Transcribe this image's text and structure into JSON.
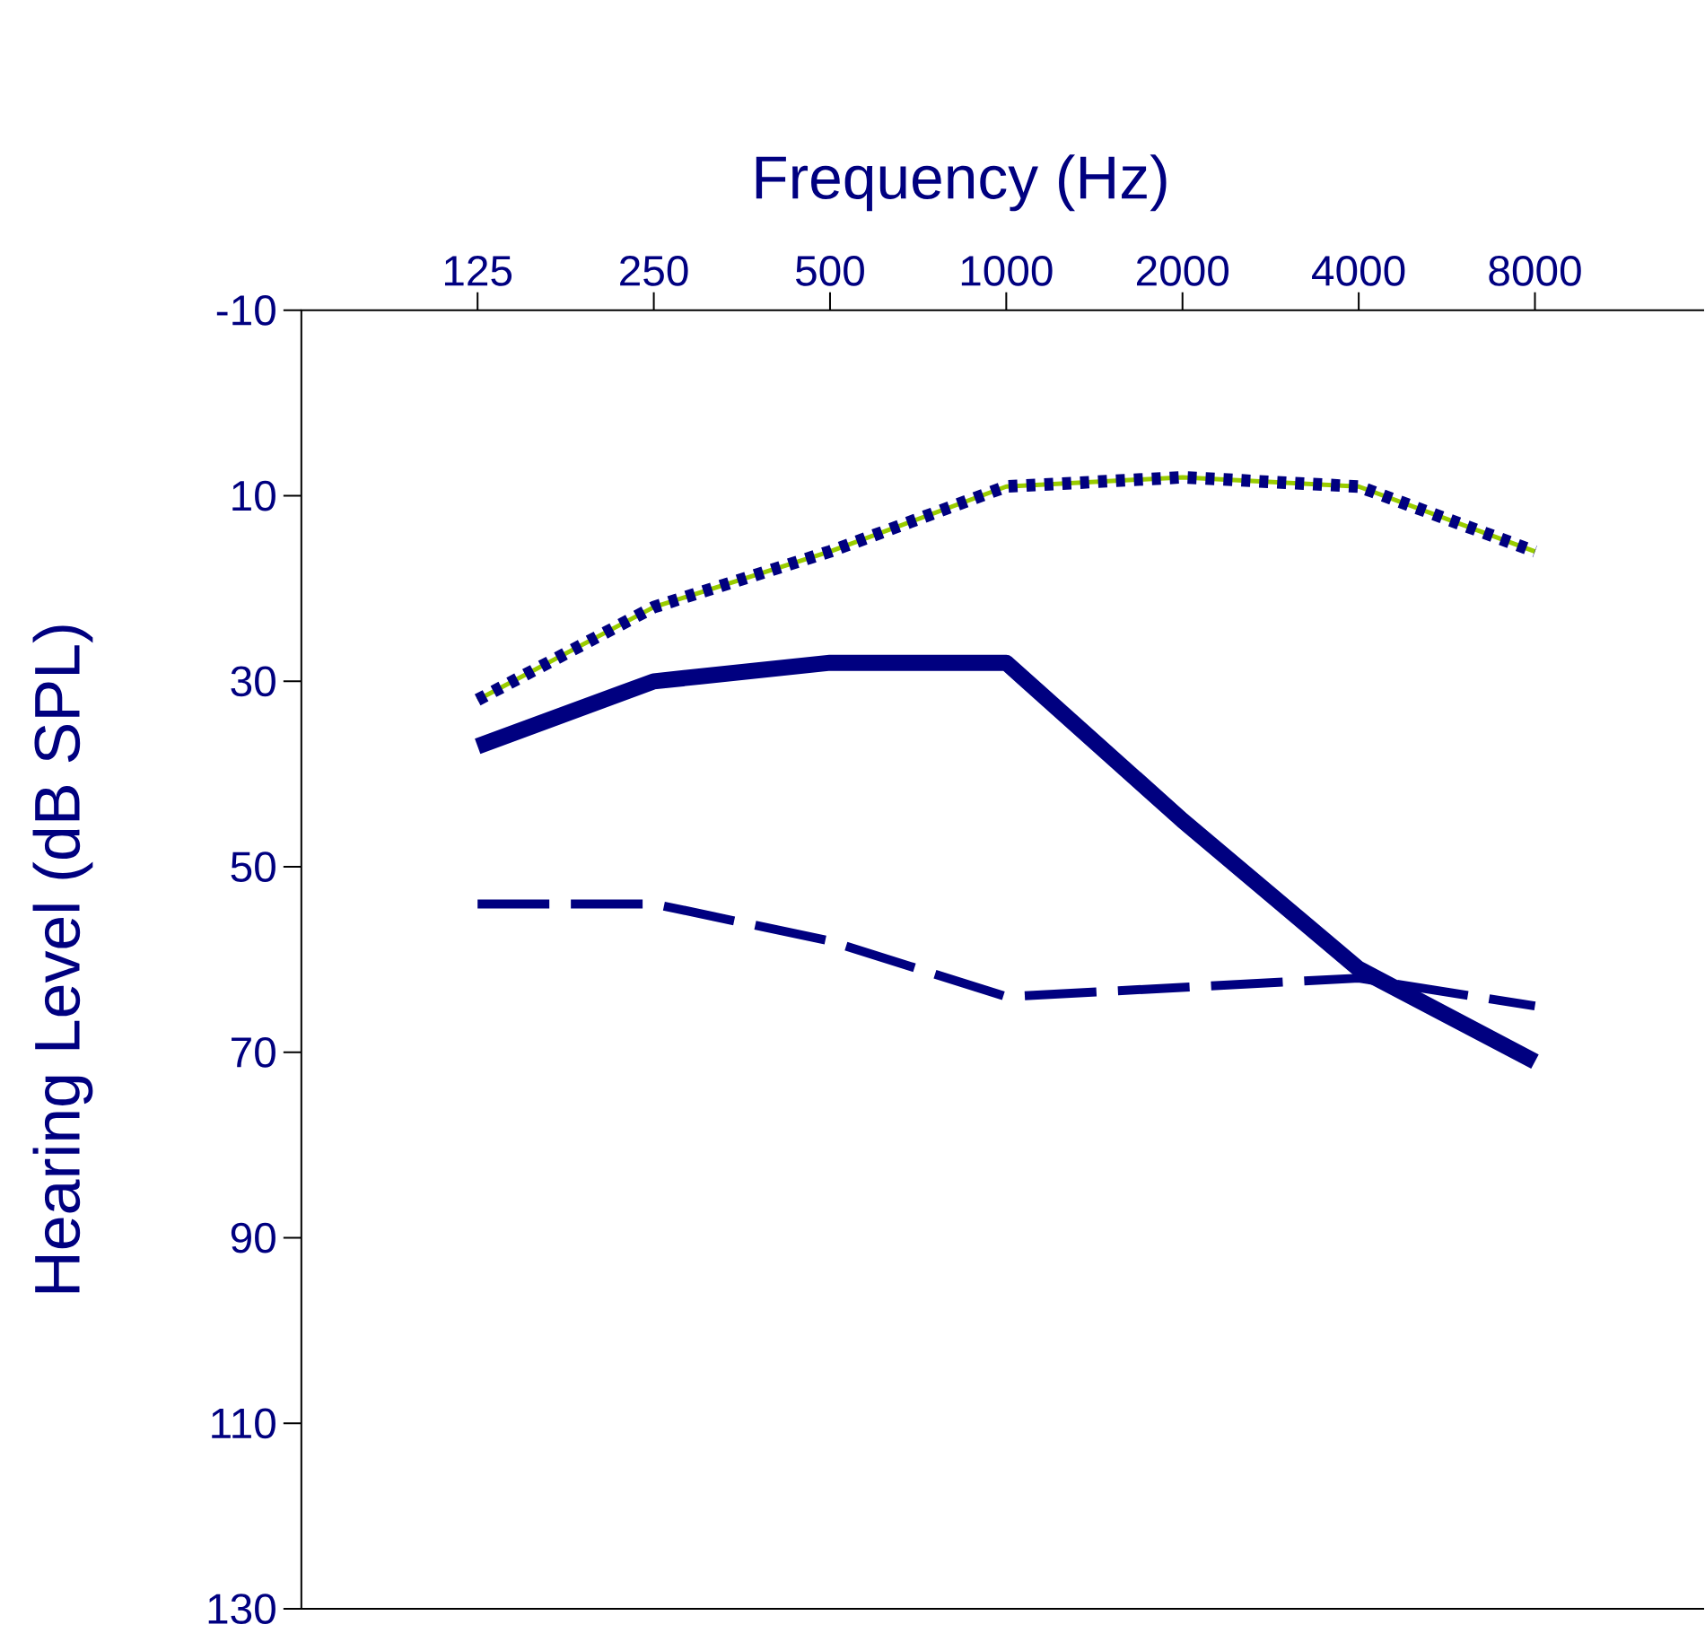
{
  "chart_data": {
    "type": "line",
    "xlabel": "Frequency (Hz)",
    "ylabel": "Hearing Level (dB SPL)",
    "categories": [
      "125",
      "250",
      "500",
      "1000",
      "2000",
      "4000",
      "8000"
    ],
    "series": [
      {
        "color": "#99cc00",
        "line_style": "solid",
        "values": [
          32,
          22,
          16,
          9,
          8,
          9,
          16
        ]
      },
      {
        "color": "#000080",
        "line_style": "dotted",
        "values": [
          32,
          22,
          16,
          9,
          8,
          9,
          16
        ]
      },
      {
        "color": "#000080",
        "line_style": "solid",
        "values": [
          37,
          30,
          28,
          28,
          45,
          61,
          71
        ]
      },
      {
        "color": "#000080",
        "line_style": "dashed",
        "values": [
          54,
          54,
          58,
          64,
          63,
          62,
          65
        ]
      }
    ],
    "ylim": [
      130,
      -10
    ],
    "yticks": [
      -10,
      10,
      30,
      50,
      70,
      90,
      110,
      130
    ],
    "grid": false,
    "marker": "none"
  }
}
